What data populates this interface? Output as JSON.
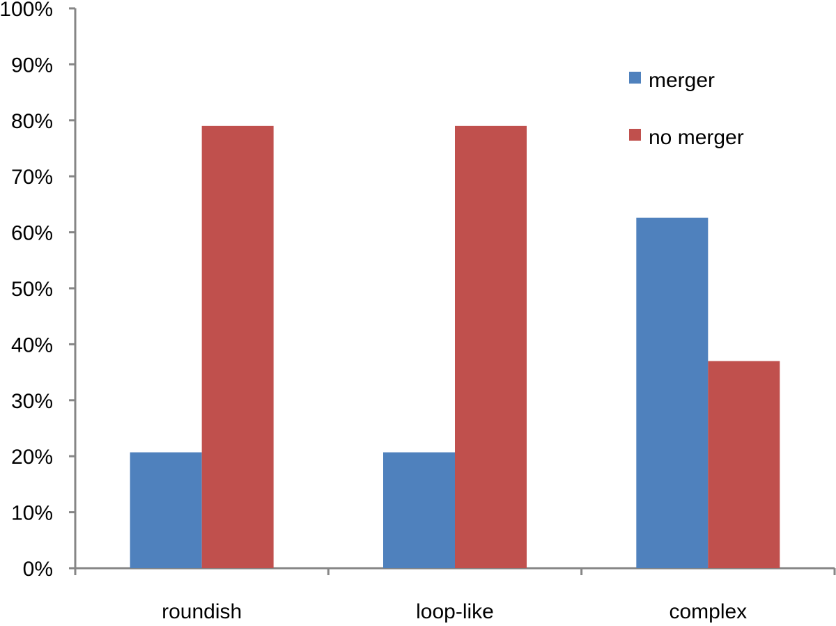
{
  "chart_data": {
    "type": "bar",
    "categories": [
      "roundish",
      "loop-like",
      "complex"
    ],
    "series": [
      {
        "name": "merger",
        "values": [
          0.207,
          0.207,
          0.626
        ],
        "color": "#4F81BD"
      },
      {
        "name": "no merger",
        "values": [
          0.79,
          0.79,
          0.37
        ],
        "color": "#C0504D"
      }
    ],
    "ylim": [
      0,
      1
    ],
    "y_ticks": [
      "0%",
      "10%",
      "20%",
      "30%",
      "40%",
      "50%",
      "60%",
      "70%",
      "80%",
      "90%",
      "100%"
    ],
    "grid": false,
    "legend_position": "top-right",
    "axis_color": "#868686",
    "title": "",
    "xlabel": "",
    "ylabel": ""
  }
}
